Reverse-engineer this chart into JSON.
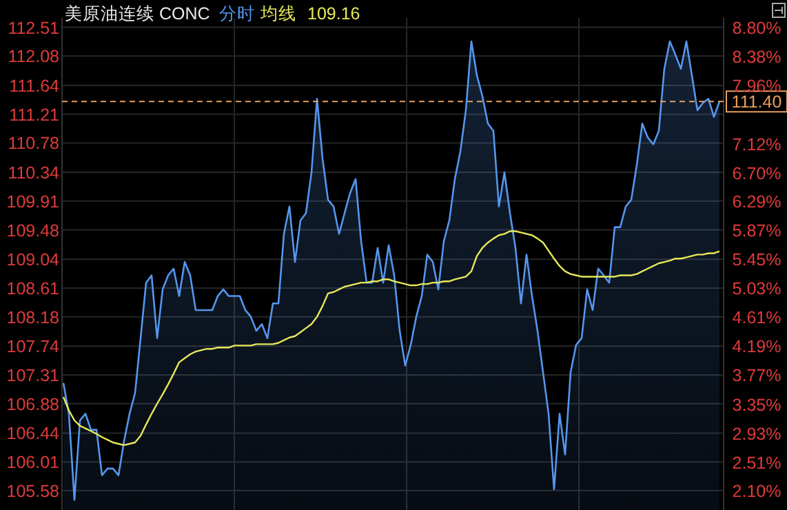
{
  "chart_data": {
    "type": "area",
    "title": "美原油连续 CONC",
    "annotations": [
      "109.16"
    ],
    "categories": [
      null,
      null,
      null,
      null,
      null,
      null,
      null,
      null,
      null,
      null,
      null,
      null,
      null,
      null,
      null,
      null,
      null,
      null,
      null,
      null,
      null,
      null,
      null,
      null,
      null,
      null,
      null,
      null,
      null,
      null,
      null,
      null,
      null,
      null,
      null,
      null,
      null,
      null,
      null,
      null,
      null,
      null,
      null,
      null,
      null,
      null,
      null,
      null,
      null,
      null,
      null,
      null,
      null,
      null,
      null,
      null,
      null,
      null,
      null,
      null,
      null,
      null,
      null,
      null,
      null,
      null,
      null,
      null,
      null,
      null,
      null,
      null,
      null,
      null,
      null,
      null,
      null,
      null,
      null,
      null,
      null,
      null,
      null,
      null,
      null,
      null,
      null,
      null,
      null,
      null,
      null,
      null,
      null,
      null,
      null,
      null,
      null,
      null,
      null,
      null,
      null,
      null,
      null,
      null,
      null,
      null,
      null,
      null,
      null,
      null,
      null,
      null,
      null,
      null,
      null,
      null,
      null,
      null,
      null,
      null
    ],
    "series": [
      {
        "name": "分时",
        "color": "#5596ee",
        "values": [
          107.19,
          106.73,
          105.44,
          106.63,
          106.73,
          106.49,
          106.49,
          105.81,
          105.91,
          105.91,
          105.81,
          106.32,
          106.73,
          107.04,
          107.86,
          108.69,
          108.8,
          107.86,
          108.59,
          108.8,
          108.9,
          108.49,
          109.0,
          108.8,
          108.28,
          108.28,
          108.28,
          108.28,
          108.49,
          108.59,
          108.49,
          108.49,
          108.49,
          108.28,
          108.18,
          107.97,
          108.07,
          107.86,
          108.38,
          108.38,
          109.42,
          109.83,
          109.0,
          109.62,
          109.73,
          110.34,
          111.44,
          110.55,
          109.93,
          109.83,
          109.42,
          109.73,
          110.03,
          110.24,
          109.31,
          108.69,
          108.69,
          109.21,
          108.69,
          109.25,
          108.8,
          107.97,
          107.45,
          107.76,
          108.18,
          108.49,
          109.11,
          109.0,
          108.59,
          109.31,
          109.62,
          110.24,
          110.65,
          111.27,
          112.3,
          111.79,
          111.48,
          111.07,
          110.96,
          109.83,
          110.34,
          109.73,
          109.21,
          108.38,
          109.11,
          108.49,
          107.97,
          107.35,
          106.73,
          105.6,
          106.73,
          106.12,
          107.35,
          107.76,
          107.86,
          108.59,
          108.28,
          108.9,
          108.8,
          108.69,
          109.52,
          109.52,
          109.83,
          109.93,
          110.45,
          111.07,
          110.86,
          110.76,
          110.96,
          111.89,
          112.3,
          112.1,
          111.89,
          112.3,
          111.79,
          111.27,
          111.38,
          111.44,
          111.17,
          111.4
        ]
      },
      {
        "name": "均线",
        "type": "line",
        "color": "#e8e85a",
        "values": [
          106.98,
          106.78,
          106.63,
          106.55,
          106.51,
          106.47,
          106.43,
          106.38,
          106.34,
          106.3,
          106.28,
          106.26,
          106.28,
          106.3,
          106.4,
          106.57,
          106.73,
          106.88,
          107.02,
          107.17,
          107.33,
          107.5,
          107.56,
          107.62,
          107.66,
          107.68,
          107.7,
          107.7,
          107.72,
          107.72,
          107.72,
          107.75,
          107.75,
          107.75,
          107.75,
          107.77,
          107.77,
          107.77,
          107.77,
          107.79,
          107.83,
          107.87,
          107.89,
          107.95,
          108.01,
          108.07,
          108.18,
          108.34,
          108.53,
          108.55,
          108.59,
          108.63,
          108.65,
          108.67,
          108.69,
          108.69,
          108.71,
          108.71,
          108.74,
          108.74,
          108.71,
          108.69,
          108.67,
          108.65,
          108.65,
          108.67,
          108.67,
          108.69,
          108.69,
          108.71,
          108.71,
          108.74,
          108.76,
          108.78,
          108.86,
          109.09,
          109.21,
          109.29,
          109.35,
          109.4,
          109.42,
          109.46,
          109.46,
          109.44,
          109.42,
          109.4,
          109.35,
          109.29,
          109.17,
          109.05,
          108.94,
          108.86,
          108.82,
          108.8,
          108.78,
          108.78,
          108.78,
          108.78,
          108.78,
          108.78,
          108.78,
          108.8,
          108.8,
          108.8,
          108.82,
          108.86,
          108.9,
          108.94,
          108.98,
          109.0,
          109.02,
          109.05,
          109.05,
          109.07,
          109.09,
          109.11,
          109.11,
          109.13,
          109.13,
          109.16
        ]
      }
    ],
    "ylim": [
      105.29,
      112.65
    ],
    "yticks": [
      105.58,
      106.01,
      106.44,
      106.88,
      107.31,
      107.74,
      108.18,
      108.61,
      109.04,
      109.48,
      109.91,
      110.34,
      110.78,
      111.21,
      111.64,
      112.08,
      112.51
    ],
    "y2lim": [
      1.82,
      8.94
    ],
    "y2ticks": [
      {
        "value": 2.1,
        "label": "2.10%"
      },
      {
        "value": 2.51,
        "label": "2.51%"
      },
      {
        "value": 2.93,
        "label": "2.93%"
      },
      {
        "value": 3.35,
        "label": "3.35%"
      },
      {
        "value": 3.77,
        "label": "3.77%"
      },
      {
        "value": 4.19,
        "label": "4.19%"
      },
      {
        "value": 4.61,
        "label": "4.61%"
      },
      {
        "value": 5.03,
        "label": "5.03%"
      },
      {
        "value": 5.45,
        "label": "5.45%"
      },
      {
        "value": 5.87,
        "label": "5.87%"
      },
      {
        "value": 6.29,
        "label": "6.29%"
      },
      {
        "value": 6.7,
        "label": "6.70%"
      },
      {
        "value": 7.12,
        "label": "7.12%"
      },
      {
        "value": 7.96,
        "label": "7.96%"
      },
      {
        "value": 8.38,
        "label": "8.38%"
      },
      {
        "value": 8.8,
        "label": "8.80%"
      }
    ],
    "ref_lines": [
      {
        "axis": "y",
        "value": 111.4,
        "label": "111.40",
        "color": "#e8a060",
        "line_style": "dashed"
      }
    ],
    "grid": true,
    "legend": "top"
  }
}
